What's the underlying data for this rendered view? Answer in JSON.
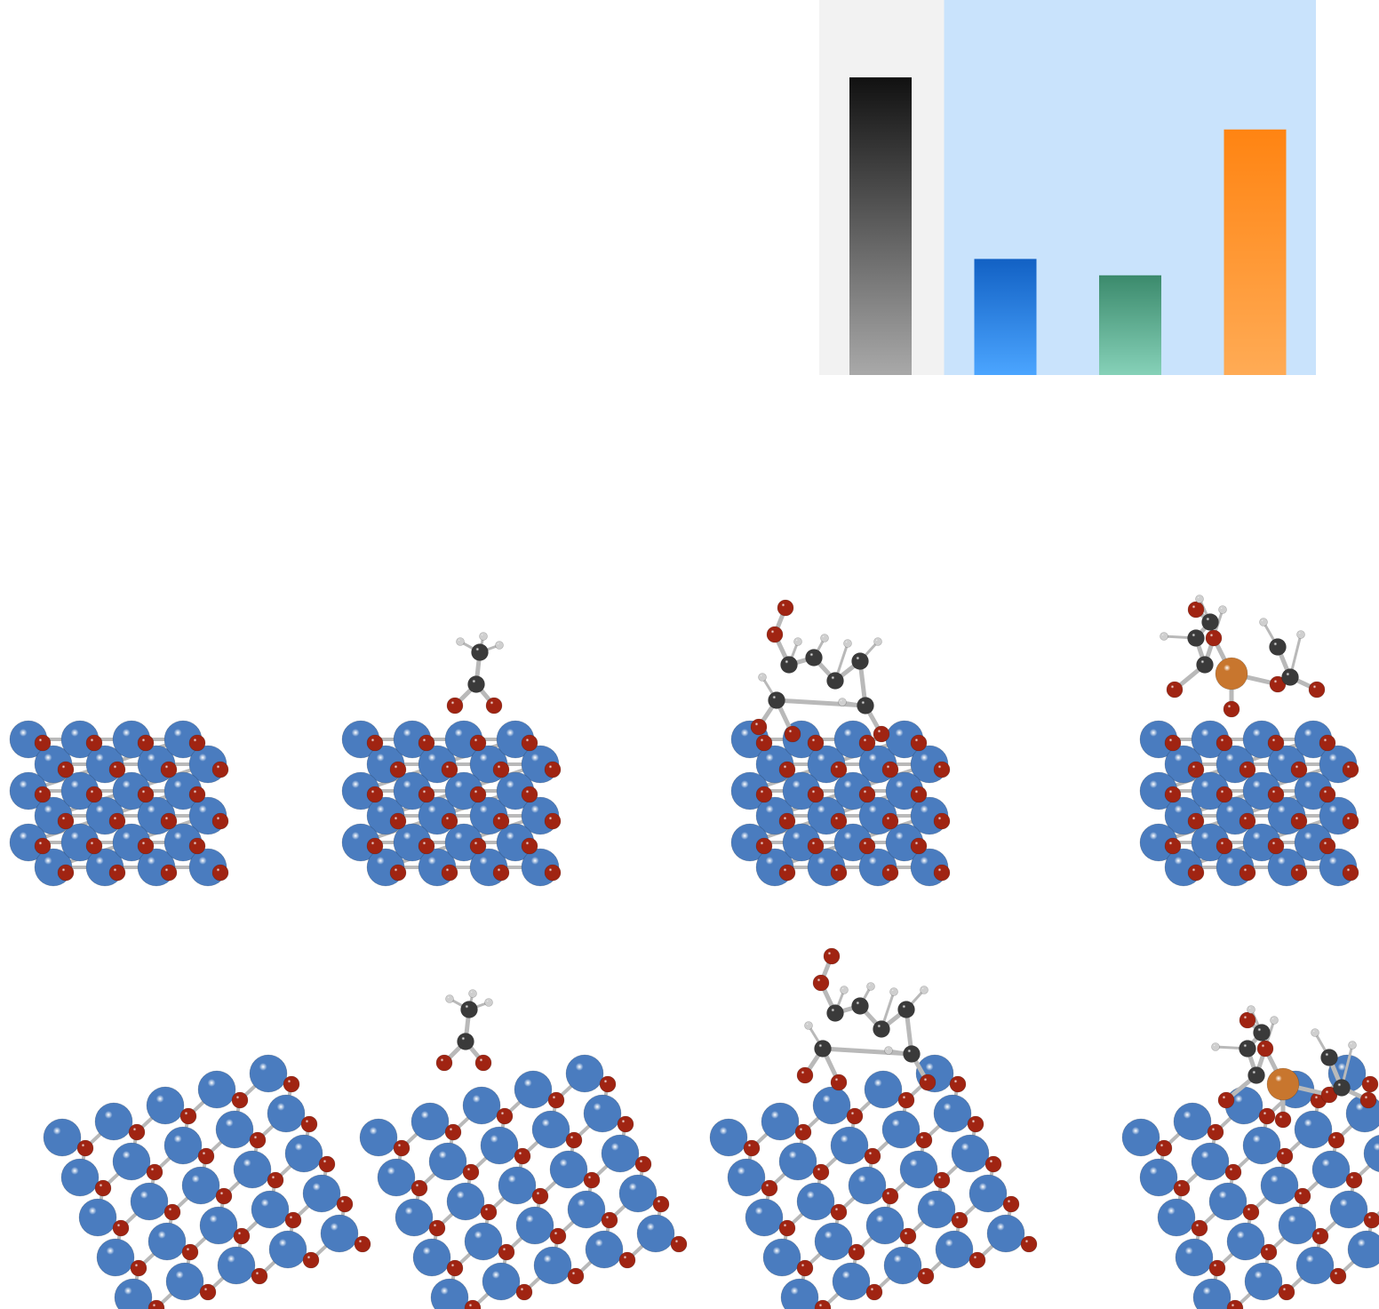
{
  "chart_data": {
    "type": "bar",
    "title": "",
    "xlabel": "",
    "ylabel": "",
    "categories": [
      "",
      "",
      "",
      ""
    ],
    "values": [
      1.0,
      0.39,
      0.335,
      0.825
    ],
    "ylim": [
      0,
      1.26
    ],
    "grid": false,
    "legend": "none",
    "bar_colors": [
      {
        "top": "#111111",
        "bottom": "#a9a9a9"
      },
      {
        "top": "#1261c4",
        "bottom": "#4ba5ff"
      },
      {
        "top": "#3b8a6c",
        "bottom": "#86d1b8"
      },
      {
        "top": "#ff8412",
        "bottom": "#ffab55"
      }
    ],
    "background_regions": [
      {
        "covers_bars": [
          0
        ],
        "color": "#f2f2f2"
      },
      {
        "covers_bars": [
          1,
          2,
          3
        ],
        "color": "#c9e3fc"
      }
    ]
  },
  "atom_colors": {
    "metal": "#4a7cbf",
    "oxygen": "#a02412",
    "carbon": "#3a3a3a",
    "hydrogen": "#cfcfcf",
    "dopant": "#c8762e",
    "bond": "#b9b9b9"
  },
  "structures": [
    {
      "view": "side",
      "adsorbate": "none"
    },
    {
      "view": "side",
      "adsorbate": "acetate"
    },
    {
      "view": "side",
      "adsorbate": "multi-acetate"
    },
    {
      "view": "side",
      "adsorbate": "dopant-acetate"
    },
    {
      "view": "top",
      "adsorbate": "none"
    },
    {
      "view": "top",
      "adsorbate": "acetate"
    },
    {
      "view": "top",
      "adsorbate": "multi-acetate"
    },
    {
      "view": "top",
      "adsorbate": "dopant-acetate"
    }
  ]
}
